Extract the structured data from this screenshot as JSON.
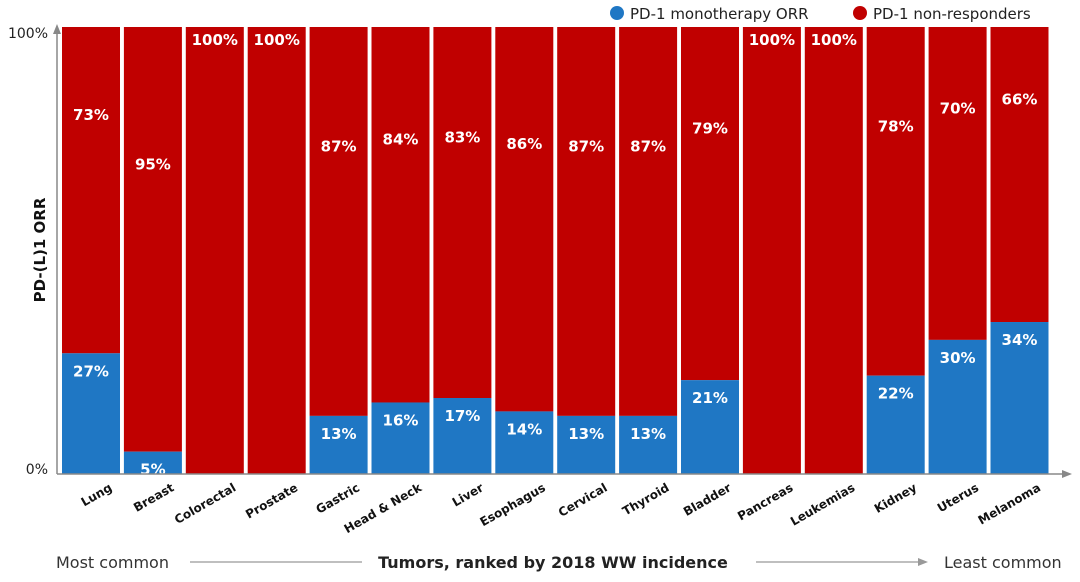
{
  "chart_data": {
    "type": "bar",
    "stacked": true,
    "categories": [
      "Lung",
      "Breast",
      "Colorectal",
      "Prostate",
      "Gastric",
      "Head & Neck",
      "Liver",
      "Esophagus",
      "Cervical",
      "Thyroid",
      "Bladder",
      "Pancreas",
      "Leukemias",
      "Kidney",
      "Uterus",
      "Melanoma"
    ],
    "series": [
      {
        "name": "PD-1 monotherapy ORR",
        "color": "#1f77c4",
        "values": [
          27,
          5,
          0,
          0,
          13,
          16,
          17,
          14,
          13,
          13,
          21,
          0,
          0,
          22,
          30,
          34
        ]
      },
      {
        "name": "PD-1 non-responders",
        "color": "#c00000",
        "values": [
          73,
          95,
          100,
          100,
          87,
          84,
          83,
          86,
          87,
          87,
          79,
          100,
          100,
          78,
          70,
          66
        ]
      }
    ],
    "ylabel": "PD-(L)1 ORR",
    "xlabel": "Tumors, ranked by 2018 WW incidence",
    "x_left_note": "Most common",
    "x_right_note": "Least common",
    "ylim": [
      0,
      100
    ],
    "yticks": [
      "0%",
      "100%"
    ],
    "value_suffix": "%",
    "legend_position": "top-right",
    "grid": false
  }
}
